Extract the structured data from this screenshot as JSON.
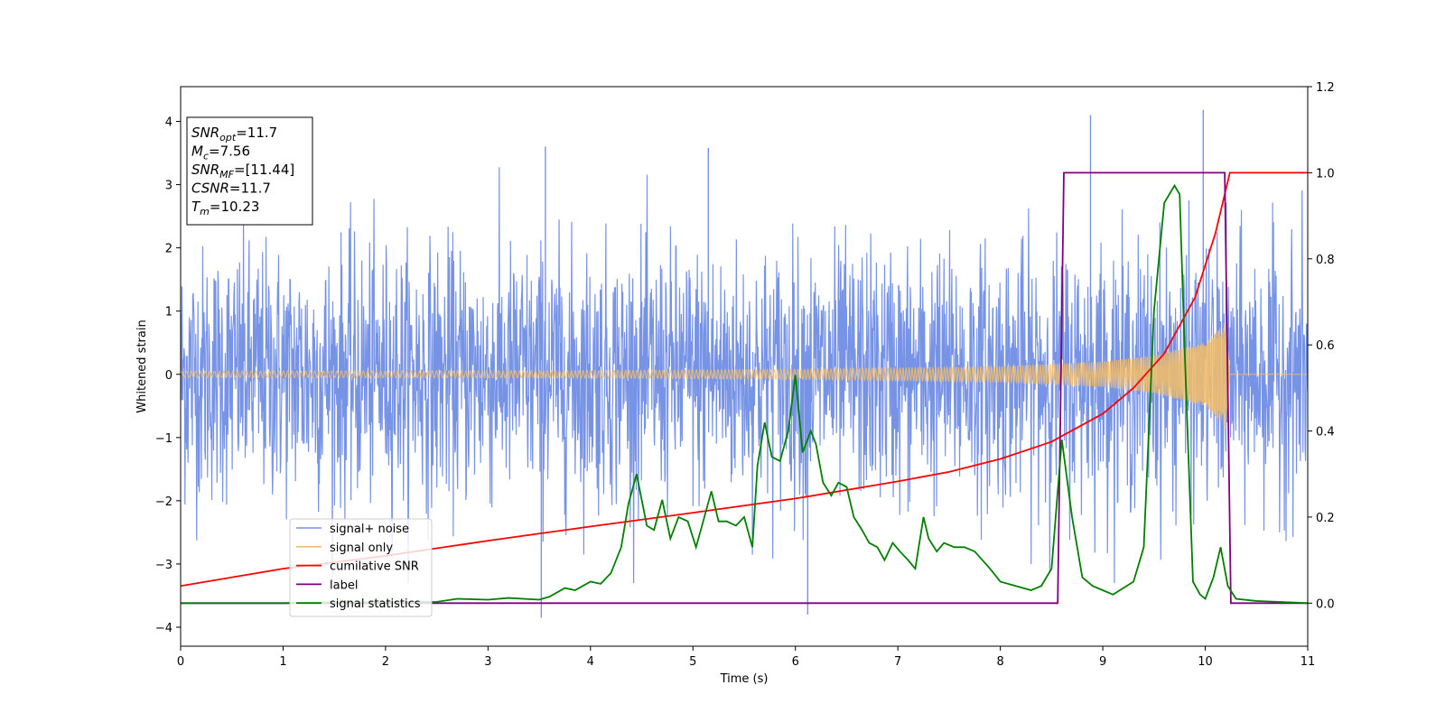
{
  "chart_data": {
    "type": "line",
    "xlabel": "Time (s)",
    "ylabel": "Whitened strain",
    "xlim": [
      0,
      11
    ],
    "ylim_left": [
      -4.3,
      4.55
    ],
    "ylim_right": [
      -0.1,
      1.2
    ],
    "x_ticks": [
      0,
      1,
      2,
      3,
      4,
      5,
      6,
      7,
      8,
      9,
      10,
      11
    ],
    "y_ticks_left": [
      -4,
      -3,
      -2,
      -1,
      0,
      1,
      2,
      3,
      4
    ],
    "y_ticks_right": [
      "0.0",
      "0.2",
      "0.4",
      "0.6",
      "0.8",
      "1.0",
      "1.2"
    ],
    "legend_position": "lower-left",
    "info_box": [
      {
        "symbol": "SNR",
        "sub": "opt",
        "value": "=11.7"
      },
      {
        "symbol": "M",
        "sub": "c",
        "value": "=7.56"
      },
      {
        "symbol": "SNR",
        "sub": "MF",
        "value": "=[11.44]"
      },
      {
        "symbol": "CSNR",
        "sub": "",
        "value": "=11.7"
      },
      {
        "symbol": "T",
        "sub": "m",
        "value": "=10.23"
      }
    ],
    "series": [
      {
        "name": "signal+ noise",
        "axis": "left",
        "color": "#7793e6",
        "description_values": {
          "noise_std": 1.0,
          "range": [
            -3.85,
            4.2
          ]
        },
        "notable_peaks": [
          [
            8.88,
            4.1
          ],
          [
            9.98,
            4.18
          ],
          [
            3.56,
            3.6
          ],
          [
            5.15,
            3.58
          ],
          [
            3.52,
            -3.85
          ],
          [
            6.12,
            -3.8
          ]
        ]
      },
      {
        "name": "signal only",
        "axis": "left",
        "color": "#f5bd66",
        "envelope": {
          "t": [
            0,
            4,
            6,
            8,
            9,
            9.5,
            10,
            10.2,
            10.24
          ],
          "amplitude": [
            0.05,
            0.06,
            0.08,
            0.12,
            0.2,
            0.3,
            0.5,
            0.85,
            0.0
          ]
        }
      },
      {
        "name": "cumilative SNR",
        "axis": "right",
        "color": "#ff0000",
        "x": [
          0,
          1,
          2,
          3,
          4,
          5,
          6,
          7,
          7.5,
          8,
          8.5,
          9,
          9.3,
          9.6,
          9.9,
          10.1,
          10.24,
          11
        ],
        "y": [
          0.04,
          0.08,
          0.11,
          0.145,
          0.178,
          0.21,
          0.243,
          0.283,
          0.305,
          0.335,
          0.375,
          0.44,
          0.5,
          0.58,
          0.71,
          0.86,
          1.0,
          1.0
        ]
      },
      {
        "name": "label",
        "axis": "right",
        "color": "#800080",
        "x": [
          0,
          8.56,
          8.62,
          10.19,
          10.25,
          11
        ],
        "y": [
          0.0,
          0.0,
          1.0,
          1.0,
          0.0,
          0.0
        ]
      },
      {
        "name": "signal statistics",
        "axis": "right",
        "color": "#008000",
        "x": [
          0,
          0.5,
          1,
          1.5,
          2,
          2.5,
          2.7,
          3,
          3.2,
          3.5,
          3.6,
          3.75,
          3.85,
          4.0,
          4.1,
          4.2,
          4.3,
          4.37,
          4.45,
          4.55,
          4.62,
          4.7,
          4.78,
          4.86,
          4.95,
          5.03,
          5.1,
          5.18,
          5.25,
          5.33,
          5.42,
          5.5,
          5.58,
          5.63,
          5.7,
          5.77,
          5.85,
          5.93,
          6.0,
          6.07,
          6.15,
          6.2,
          6.27,
          6.35,
          6.42,
          6.5,
          6.57,
          6.65,
          6.72,
          6.8,
          6.87,
          6.95,
          7.02,
          7.1,
          7.17,
          7.25,
          7.3,
          7.38,
          7.45,
          7.55,
          7.65,
          7.75,
          7.9,
          8.0,
          8.15,
          8.3,
          8.4,
          8.5,
          8.6,
          8.7,
          8.8,
          8.9,
          9.0,
          9.1,
          9.2,
          9.3,
          9.4,
          9.5,
          9.6,
          9.7,
          9.75,
          9.8,
          9.88,
          9.95,
          10.0,
          10.08,
          10.15,
          10.22,
          10.3,
          10.5,
          11
        ],
        "y": [
          0.0,
          0.0,
          0.0,
          0.002,
          0.002,
          0.003,
          0.01,
          0.008,
          0.012,
          0.008,
          0.015,
          0.035,
          0.03,
          0.05,
          0.045,
          0.07,
          0.13,
          0.23,
          0.3,
          0.18,
          0.17,
          0.24,
          0.15,
          0.2,
          0.19,
          0.13,
          0.19,
          0.26,
          0.19,
          0.19,
          0.18,
          0.2,
          0.13,
          0.32,
          0.42,
          0.34,
          0.33,
          0.4,
          0.53,
          0.35,
          0.4,
          0.37,
          0.28,
          0.25,
          0.28,
          0.27,
          0.2,
          0.17,
          0.14,
          0.13,
          0.1,
          0.14,
          0.12,
          0.1,
          0.08,
          0.2,
          0.15,
          0.12,
          0.14,
          0.13,
          0.13,
          0.12,
          0.08,
          0.05,
          0.04,
          0.03,
          0.04,
          0.08,
          0.38,
          0.2,
          0.06,
          0.04,
          0.03,
          0.02,
          0.035,
          0.05,
          0.13,
          0.68,
          0.93,
          0.97,
          0.95,
          0.58,
          0.05,
          0.02,
          0.01,
          0.06,
          0.13,
          0.04,
          0.01,
          0.005,
          0.0
        ]
      }
    ]
  }
}
